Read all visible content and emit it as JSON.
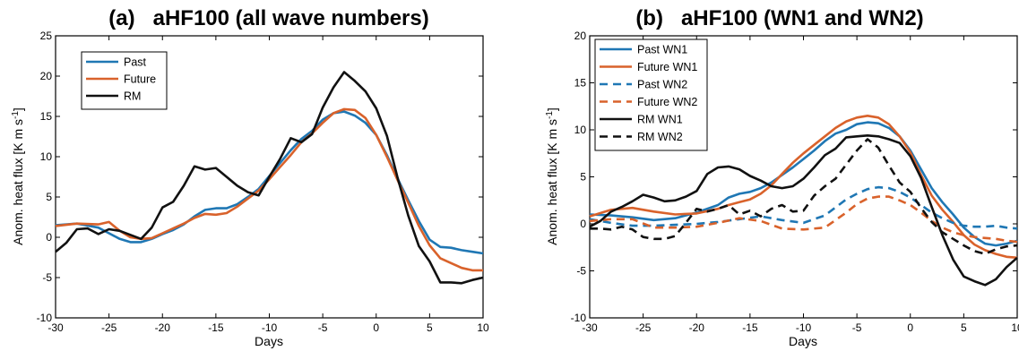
{
  "colors": {
    "past": "#1f77b4",
    "future": "#d9622b",
    "rm": "#111111"
  },
  "chart_data": [
    {
      "type": "line",
      "title": "(a)   aHF100 (all wave numbers)",
      "xlabel": "Days",
      "ylabel": "Anom. heat flux [K m s",
      "ylabel_sup": "-1",
      "ylabel_end": "]",
      "xlim": [
        -30,
        10
      ],
      "ylim": [
        -10,
        25
      ],
      "xticks": [
        -30,
        -25,
        -20,
        -15,
        -10,
        -5,
        0,
        5,
        10
      ],
      "yticks": [
        -10,
        -5,
        0,
        5,
        10,
        15,
        20,
        25
      ],
      "grid": false,
      "legend": "top-left",
      "series": [
        {
          "name": "Past",
          "color": "#1f77b4",
          "dash": "solid",
          "x": [
            -30,
            -28,
            -26,
            -25,
            -24,
            -23,
            -22,
            -21,
            -20,
            -19,
            -18,
            -17,
            -16,
            -15,
            -14,
            -13,
            -12,
            -11,
            -10,
            -9,
            -8,
            -7,
            -6,
            -5,
            -4,
            -3,
            -2,
            -1,
            0,
            1,
            2,
            3,
            4,
            5,
            6,
            7,
            8,
            9,
            10
          ],
          "y": [
            1.5,
            1.7,
            1.2,
            0.5,
            -0.2,
            -0.6,
            -0.6,
            -0.2,
            0.4,
            0.9,
            1.6,
            2.6,
            3.4,
            3.6,
            3.6,
            4.1,
            5.0,
            6.0,
            7.6,
            9.2,
            10.8,
            12.2,
            13.2,
            14.6,
            15.4,
            15.6,
            15.1,
            14.2,
            12.7,
            10.2,
            7.3,
            4.6,
            2.0,
            -0.3,
            -1.2,
            -1.3,
            -1.6,
            -1.8,
            -2.0
          ]
        },
        {
          "name": "Future",
          "color": "#d9622b",
          "dash": "solid",
          "x": [
            -30,
            -28,
            -26,
            -25,
            -24,
            -23,
            -22,
            -21,
            -20,
            -19,
            -18,
            -17,
            -16,
            -15,
            -14,
            -13,
            -12,
            -11,
            -10,
            -9,
            -8,
            -7,
            -6,
            -5,
            -4,
            -3,
            -2,
            -1,
            0,
            1,
            2,
            3,
            4,
            5,
            6,
            7,
            8,
            9,
            10
          ],
          "y": [
            1.4,
            1.7,
            1.6,
            1.9,
            0.8,
            0.0,
            -0.2,
            -0.1,
            0.5,
            1.1,
            1.7,
            2.4,
            2.9,
            2.8,
            3.0,
            3.8,
            4.8,
            5.8,
            7.2,
            8.7,
            10.2,
            11.8,
            12.9,
            14.2,
            15.4,
            15.9,
            15.8,
            14.8,
            12.7,
            10.0,
            7.1,
            4.3,
            1.4,
            -1.0,
            -2.6,
            -3.2,
            -3.8,
            -4.1,
            -4.1
          ]
        },
        {
          "name": "RM",
          "color": "#111111",
          "dash": "solid",
          "x": [
            -30,
            -29,
            -28,
            -27,
            -26,
            -25,
            -24,
            -23,
            -22,
            -21,
            -20,
            -19,
            -18,
            -17,
            -16,
            -15,
            -14,
            -13,
            -12,
            -11,
            -10,
            -9,
            -8,
            -7,
            -6,
            -5,
            -4,
            -3,
            -2,
            -1,
            0,
            1,
            2,
            3,
            4,
            5,
            6,
            7,
            8,
            9,
            10
          ],
          "y": [
            -1.8,
            -0.7,
            1.0,
            1.1,
            0.4,
            1.0,
            0.8,
            0.3,
            -0.2,
            1.2,
            3.7,
            4.4,
            6.4,
            8.8,
            8.4,
            8.6,
            7.5,
            6.4,
            5.6,
            5.2,
            7.5,
            9.7,
            12.3,
            11.8,
            12.8,
            16.1,
            18.6,
            20.5,
            19.4,
            18.1,
            16.0,
            12.6,
            7.4,
            2.7,
            -1.1,
            -3.0,
            -5.6,
            -5.6,
            -5.7,
            -5.3,
            -5.0
          ]
        }
      ],
      "legend_entries": [
        "Past",
        "Future",
        "RM"
      ]
    },
    {
      "type": "line",
      "title": "(b)   aHF100 (WN1 and WN2)",
      "xlabel": "Days",
      "ylabel": "Anom. heat flux [K m s",
      "ylabel_sup": "-1",
      "ylabel_end": "]",
      "xlim": [
        -30,
        10
      ],
      "ylim": [
        -10,
        20
      ],
      "xticks": [
        -30,
        -25,
        -20,
        -15,
        -10,
        -5,
        0,
        5,
        10
      ],
      "yticks": [
        -10,
        -5,
        0,
        5,
        10,
        15,
        20
      ],
      "grid": false,
      "legend": "top-left",
      "series": [
        {
          "name": "Past WN1",
          "color": "#1f77b4",
          "dash": "solid",
          "x": [
            -30,
            -28,
            -26,
            -24,
            -22,
            -20,
            -18,
            -17,
            -16,
            -15,
            -14,
            -13,
            -12,
            -11,
            -10,
            -9,
            -8,
            -7,
            -6,
            -5,
            -4,
            -3,
            -2,
            -1,
            0,
            1,
            2,
            3,
            4,
            5,
            6,
            7,
            8,
            9,
            10
          ],
          "y": [
            1.0,
            0.9,
            0.7,
            0.4,
            0.6,
            1.2,
            2.0,
            2.8,
            3.2,
            3.4,
            3.8,
            4.4,
            5.2,
            6.0,
            6.9,
            7.8,
            8.8,
            9.6,
            10.0,
            10.6,
            10.8,
            10.7,
            10.2,
            9.3,
            7.8,
            5.8,
            3.8,
            2.3,
            1.0,
            -0.4,
            -1.4,
            -2.1,
            -2.3,
            -2.1,
            -1.8
          ]
        },
        {
          "name": "Future WN1",
          "color": "#d9622b",
          "dash": "solid",
          "x": [
            -30,
            -28,
            -26,
            -24,
            -22,
            -20,
            -18,
            -17,
            -16,
            -15,
            -14,
            -13,
            -12,
            -11,
            -10,
            -9,
            -8,
            -7,
            -6,
            -5,
            -4,
            -3,
            -2,
            -1,
            0,
            1,
            2,
            3,
            4,
            5,
            6,
            7,
            8,
            9,
            10
          ],
          "y": [
            0.8,
            1.5,
            1.7,
            1.3,
            1.0,
            1.1,
            1.6,
            2.0,
            2.3,
            2.6,
            3.2,
            4.1,
            5.3,
            6.5,
            7.5,
            8.4,
            9.3,
            10.2,
            10.9,
            11.3,
            11.5,
            11.3,
            10.6,
            9.3,
            7.6,
            5.2,
            3.0,
            1.5,
            0.2,
            -1.2,
            -2.2,
            -2.8,
            -3.2,
            -3.5,
            -3.6
          ]
        },
        {
          "name": "Past WN2",
          "color": "#1f77b4",
          "dash": "dash",
          "x": [
            -30,
            -28,
            -26,
            -24,
            -22,
            -20,
            -18,
            -16,
            -14,
            -12,
            -10,
            -8,
            -6,
            -5,
            -4,
            -3,
            -2,
            -1,
            0,
            1,
            2,
            3,
            4,
            5,
            6,
            7,
            8,
            9,
            10
          ],
          "y": [
            0.5,
            0.1,
            -0.2,
            -0.2,
            -0.1,
            0.0,
            0.2,
            0.5,
            0.8,
            0.4,
            0.1,
            0.9,
            2.6,
            3.2,
            3.7,
            3.9,
            3.8,
            3.4,
            2.8,
            2.0,
            1.2,
            0.6,
            0.1,
            -0.2,
            -0.3,
            -0.3,
            -0.2,
            -0.4,
            -0.5
          ]
        },
        {
          "name": "Future WN2",
          "color": "#d9622b",
          "dash": "dash",
          "x": [
            -30,
            -28,
            -26,
            -24,
            -22,
            -20,
            -18,
            -16,
            -14,
            -12,
            -10,
            -8,
            -6,
            -5,
            -4,
            -3,
            -2,
            -1,
            0,
            1,
            2,
            3,
            4,
            5,
            6,
            7,
            8,
            9,
            10
          ],
          "y": [
            0.3,
            0.5,
            0.5,
            -0.4,
            -0.4,
            -0.3,
            0.1,
            0.6,
            0.3,
            -0.5,
            -0.6,
            -0.4,
            1.2,
            2.1,
            2.7,
            2.9,
            2.9,
            2.5,
            2.0,
            1.2,
            0.3,
            -0.4,
            -0.9,
            -1.2,
            -1.4,
            -1.5,
            -1.6,
            -1.8,
            -1.9
          ]
        },
        {
          "name": "RM WN1",
          "color": "#111111",
          "dash": "solid",
          "x": [
            -30,
            -29,
            -28,
            -27,
            -26,
            -25,
            -24,
            -23,
            -22,
            -21,
            -20,
            -19,
            -18,
            -17,
            -16,
            -15,
            -14,
            -13,
            -12,
            -11,
            -10,
            -9,
            -8,
            -7,
            -6,
            -5,
            -4,
            -3,
            -2,
            -1,
            0,
            1,
            2,
            3,
            4,
            5,
            6,
            7,
            8,
            9,
            10
          ],
          "y": [
            -0.3,
            0.3,
            1.3,
            1.8,
            2.4,
            3.1,
            2.8,
            2.4,
            2.5,
            2.9,
            3.5,
            5.3,
            6.0,
            6.1,
            5.8,
            5.1,
            4.6,
            4.0,
            3.8,
            4.0,
            4.8,
            6.0,
            7.3,
            8.0,
            9.2,
            9.3,
            9.4,
            9.3,
            9.0,
            8.6,
            7.2,
            4.9,
            1.8,
            -1.2,
            -3.8,
            -5.6,
            -6.1,
            -6.5,
            -5.9,
            -4.6,
            -3.6
          ]
        },
        {
          "name": "RM WN2",
          "color": "#111111",
          "dash": "dash",
          "x": [
            -30,
            -29,
            -28,
            -27,
            -26,
            -25,
            -24,
            -23,
            -22,
            -21,
            -20,
            -19,
            -18,
            -17,
            -16,
            -15,
            -14,
            -13,
            -12,
            -11,
            -10,
            -9,
            -8,
            -7,
            -6,
            -5,
            -4,
            -3,
            -2,
            -1,
            0,
            1,
            2,
            3,
            4,
            5,
            6,
            7,
            8,
            9,
            10
          ],
          "y": [
            -0.5,
            -0.5,
            -0.6,
            -0.3,
            -0.6,
            -1.4,
            -1.6,
            -1.6,
            -1.3,
            0.1,
            1.6,
            1.3,
            1.6,
            2.0,
            1.0,
            1.4,
            0.8,
            1.6,
            2.0,
            1.3,
            1.4,
            3.0,
            4.0,
            4.8,
            6.3,
            7.8,
            9.0,
            8.1,
            6.2,
            4.4,
            3.4,
            1.7,
            0.2,
            -0.9,
            -1.6,
            -2.3,
            -2.9,
            -3.2,
            -2.7,
            -2.4,
            -2.3
          ]
        }
      ],
      "legend_entries": [
        "Past WN1",
        "Future WN1",
        "Past WN2",
        "Future WN2",
        "RM WN1",
        "RM WN2"
      ]
    }
  ]
}
